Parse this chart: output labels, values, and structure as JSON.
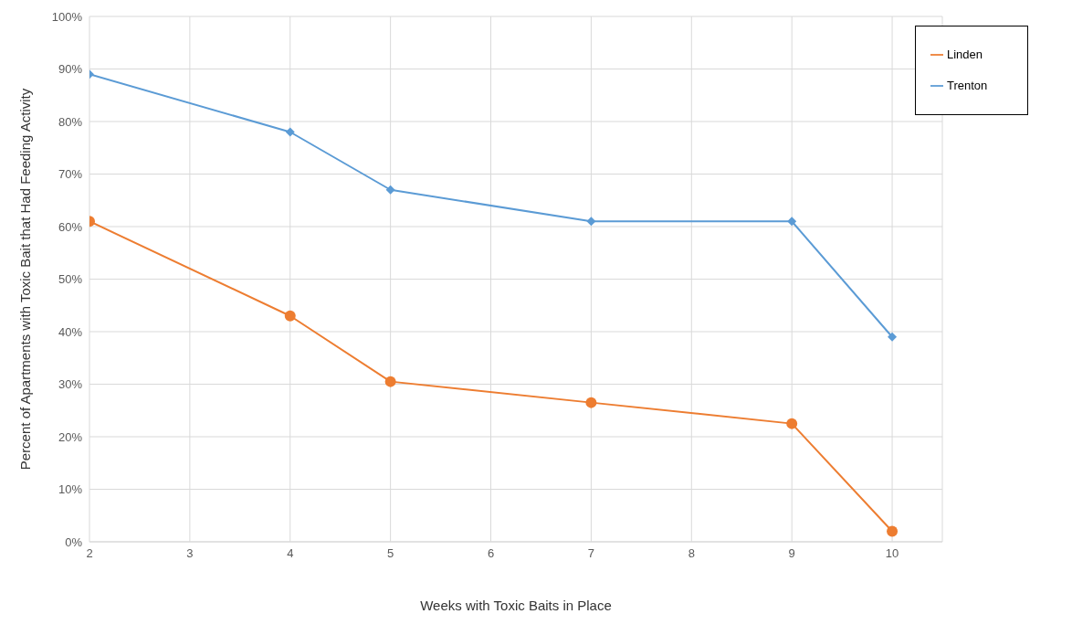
{
  "chart_data": {
    "type": "line",
    "xlabel": "Weeks with Toxic Baits in Place",
    "ylabel": "Percent of Apartments with Toxic Bait that Had Feeding Activity",
    "x": [
      2,
      4,
      5,
      7,
      9,
      10
    ],
    "series": [
      {
        "name": "Trenton",
        "color": "#5b9bd5",
        "marker": "diamond",
        "values": [
          89,
          78,
          67,
          61,
          61,
          39
        ]
      },
      {
        "name": "Linden",
        "color": "#ed7d31",
        "marker": "circle",
        "values": [
          61,
          43,
          30.5,
          26.5,
          22.5,
          2
        ]
      }
    ],
    "xlim": [
      2,
      10.5
    ],
    "xticks": [
      2,
      3,
      4,
      5,
      6,
      7,
      8,
      9,
      10
    ],
    "ylim": [
      0,
      100
    ],
    "yticks": [
      {
        "value": 0,
        "label": "0%"
      },
      {
        "value": 10,
        "label": "10%"
      },
      {
        "value": 20,
        "label": "20%"
      },
      {
        "value": 30,
        "label": "30%"
      },
      {
        "value": 40,
        "label": "40%"
      },
      {
        "value": 50,
        "label": "50%"
      },
      {
        "value": 60,
        "label": "60%"
      },
      {
        "value": 70,
        "label": "70%"
      },
      {
        "value": 80,
        "label": "80%"
      },
      {
        "value": 90,
        "label": "90%"
      },
      {
        "value": 100,
        "label": "100%"
      }
    ],
    "grid": true,
    "legend": "top right",
    "line_style": "solid"
  }
}
